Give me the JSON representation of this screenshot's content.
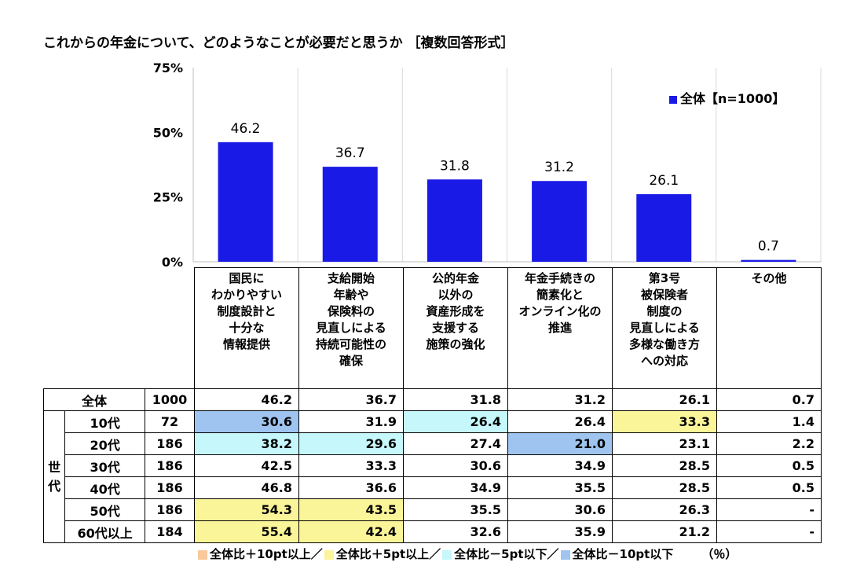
{
  "title": "これからの年金について、どのようなことが必要だと思うか ［複数回答形式］",
  "chart_data": {
    "type": "bar",
    "categories": [
      "国民に\nわかりやすい\n制度設計と\n十分な\n情報提供",
      "支給開始\n年齢や\n保険料の\n見直しによる\n持続可能性の\n確保",
      "公的年金\n以外の\n資産形成を\n支援する\n施策の強化",
      "年金手続きの\n簡素化と\nオンライン化の\n推進",
      "第3号\n被保険者\n制度の\n見直しによる\n多様な働き方\nへの対応",
      "その他"
    ],
    "series": [
      {
        "name": "全体【n=1000】",
        "values": [
          46.2,
          36.7,
          31.8,
          31.2,
          26.1,
          0.7
        ]
      }
    ],
    "yticks": [
      "0%",
      "25%",
      "50%",
      "75%"
    ],
    "ylim": [
      0,
      75
    ],
    "legend_position": "top-right",
    "bar_color": "#1a1ae6"
  },
  "table": {
    "group_label": "世\n代",
    "rows": [
      {
        "label": "全体",
        "n": "1000",
        "values": [
          "46.2",
          "36.7",
          "31.8",
          "31.2",
          "26.1",
          "0.7"
        ],
        "hl": [
          "",
          "",
          "",
          "",
          "",
          ""
        ]
      },
      {
        "label": "10代",
        "n": "72",
        "values": [
          "30.6",
          "31.9",
          "26.4",
          "26.4",
          "33.3",
          "1.4"
        ],
        "hl": [
          "b",
          "",
          "c",
          "",
          "y",
          ""
        ]
      },
      {
        "label": "20代",
        "n": "186",
        "values": [
          "38.2",
          "29.6",
          "27.4",
          "21.0",
          "23.1",
          "2.2"
        ],
        "hl": [
          "c",
          "c",
          "",
          "b",
          "",
          ""
        ]
      },
      {
        "label": "30代",
        "n": "186",
        "values": [
          "42.5",
          "33.3",
          "30.6",
          "34.9",
          "28.5",
          "0.5"
        ],
        "hl": [
          "",
          "",
          "",
          "",
          "",
          ""
        ]
      },
      {
        "label": "40代",
        "n": "186",
        "values": [
          "46.8",
          "36.6",
          "34.9",
          "35.5",
          "28.5",
          "0.5"
        ],
        "hl": [
          "",
          "",
          "",
          "",
          "",
          ""
        ]
      },
      {
        "label": "50代",
        "n": "186",
        "values": [
          "54.3",
          "43.5",
          "35.5",
          "30.6",
          "26.3",
          "-"
        ],
        "hl": [
          "y",
          "y",
          "",
          "",
          "",
          ""
        ]
      },
      {
        "label": "60代以上",
        "n": "184",
        "values": [
          "55.4",
          "42.4",
          "32.6",
          "35.9",
          "21.2",
          "-"
        ],
        "hl": [
          "y",
          "y",
          "",
          "",
          "",
          ""
        ]
      }
    ]
  },
  "footer": {
    "items": [
      {
        "label": "全体比＋10pt以上／",
        "color": "#f9c99b"
      },
      {
        "label": "全体比＋5pt以上／",
        "color": "#fbf59a"
      },
      {
        "label": "全体比－5pt以下／",
        "color": "#c6f7fa"
      },
      {
        "label": "全体比－10pt以下",
        "color": "#9ec4ef"
      }
    ],
    "unit": "（％）"
  },
  "colors": {
    "highlight_y": "#fbf59a",
    "highlight_c": "#c6f7fa",
    "highlight_b": "#9ec4ef"
  }
}
